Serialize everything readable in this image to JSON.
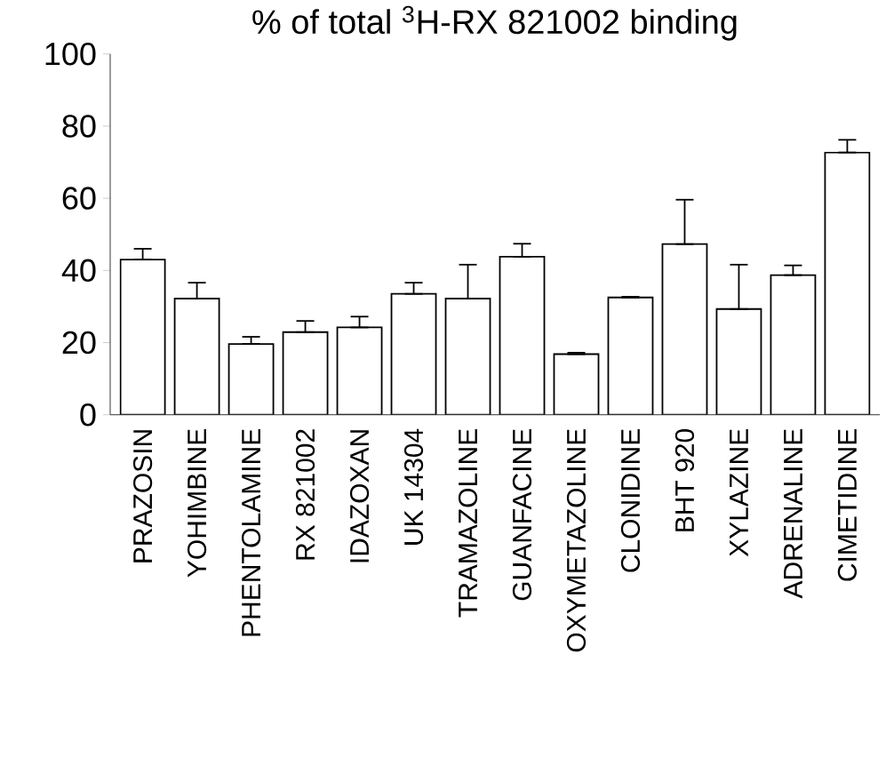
{
  "chart_data": {
    "type": "bar",
    "title": "% of total $^{3}$H-RX 821002 binding",
    "categories": [
      "PRAZOSIN",
      "YOHIMBINE",
      "PHENTOLAMINE",
      "RX 821002",
      "IDAZOXAN",
      "UK 14304",
      "TRAMAZOLINE",
      "GUANFACINE",
      "OXYMETAZOLINE",
      "CLONIDINE",
      "BHT 920",
      "XYLAZINE",
      "ADRENALINE",
      "CIMETIDINE"
    ],
    "values": [
      43.0,
      32.2,
      19.6,
      22.9,
      24.2,
      33.5,
      32.2,
      43.8,
      16.8,
      32.5,
      47.3,
      29.3,
      38.7,
      72.7
    ],
    "errors": [
      [
        43.0,
        46.0
      ],
      [
        32.2,
        36.6
      ],
      [
        19.6,
        21.6
      ],
      [
        22.9,
        26.0
      ],
      [
        24.2,
        27.2
      ],
      [
        33.5,
        36.6
      ],
      [
        32.2,
        41.6
      ],
      [
        43.8,
        47.4
      ],
      [
        16.8,
        17.2
      ],
      [
        32.5,
        32.7
      ],
      [
        47.3,
        59.6
      ],
      [
        29.3,
        41.6
      ],
      [
        38.7,
        41.4
      ],
      [
        72.7,
        76.2
      ]
    ],
    "color": "#ffffff",
    "ylim": [
      0,
      100
    ],
    "yticks": [
      0,
      20,
      40,
      60,
      80,
      100
    ],
    "grid": false
  }
}
